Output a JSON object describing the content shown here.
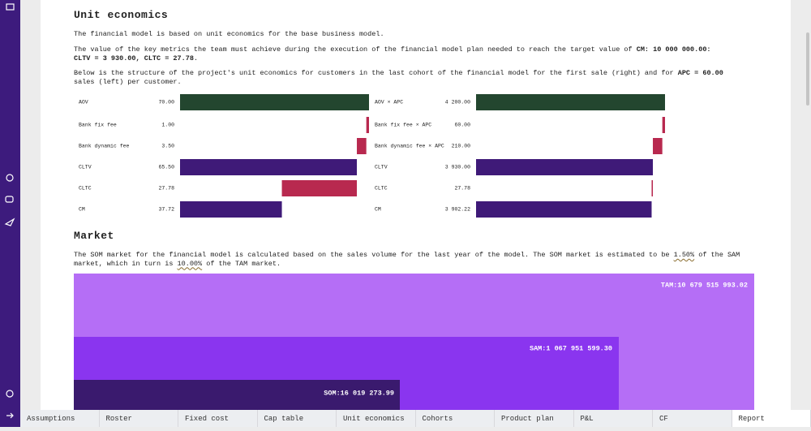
{
  "document": {
    "section1_title": "Unit economics",
    "intro": "The financial model is based on unit economics for the base business model.",
    "target": [
      {
        "text": "The value of the key metrics the team must achieve during the execution of the financial model plan needed to reach the target value of ",
        "bold": false
      },
      {
        "text": "CM: 10 000 000.00:",
        "bold": true
      },
      {
        "text": "CLTV = 3 930.00, CLTC = 27.78",
        "bold": true
      },
      {
        "text": ".",
        "bold": false
      }
    ],
    "structure": [
      {
        "text": "Below is the structure of the project's unit economics for customers in the last cohort of the financial model for the first sale (right) and for ",
        "bold": false
      },
      {
        "text": "APC = 60.00",
        "bold": true
      },
      {
        "text": " sales (left) per customer.",
        "bold": false
      }
    ],
    "section2_title": "Market",
    "market_text": [
      {
        "text": "The SOM market for the financial model is calculated based on the sales volume for the last year of the model. The SOM market is estimated to be ",
        "underline": false
      },
      {
        "text": "1.50%",
        "underline": true
      },
      {
        "text": " of the SAM market, which in turn is ",
        "underline": false
      },
      {
        "text": "10.00%",
        "underline": true
      },
      {
        "text": " of the TAM market.",
        "underline": false
      }
    ],
    "market": {
      "tam": "TAM:10 679 515 993.02",
      "sam": "SAM:1 067 951 599.30",
      "som": "SOM:16 019 273.99"
    }
  },
  "chart_data": [
    {
      "type": "waterfall",
      "categories": [
        "AOV",
        "Bank fix fee",
        "Bank dynamic fee",
        "CLTV",
        "CLTC",
        "CM"
      ],
      "values": [
        70,
        1,
        3.5,
        65.5,
        27.78,
        37.72
      ],
      "value_labels": [
        "70.00",
        "1.00",
        "3.50",
        "65.50",
        "27.78",
        "37.72"
      ],
      "colors": [
        "#23462f",
        "#b8294f",
        "#b8294f",
        "#3f1a78",
        "#b8294f",
        "#3f1a78"
      ],
      "decrease_color": "#b8294f"
    },
    {
      "type": "waterfall",
      "categories": [
        "AOV × APC",
        "Bank fix fee × APC",
        "Bank dynamic fee × APC",
        "CLTV",
        "CLTC",
        "CM"
      ],
      "values": [
        4200,
        60,
        210,
        3930,
        27.78,
        3902.22
      ],
      "value_labels": [
        "4 200.00",
        "60.00",
        "210.00",
        "3 930.00",
        "27.78",
        "3 902.22"
      ],
      "colors": [
        "#23462f",
        "#b8294f",
        "#b8294f",
        "#3f1a78",
        "#b8294f",
        "#3f1a78"
      ],
      "decrease_color": "#b8294f"
    }
  ],
  "tabs": [
    "Assumptions",
    "Roster",
    "Fixed cost",
    "Cap table",
    "Unit economics",
    "Cohorts",
    "Product plan",
    "P&L",
    "CF",
    "Report"
  ],
  "active_tab": 9
}
